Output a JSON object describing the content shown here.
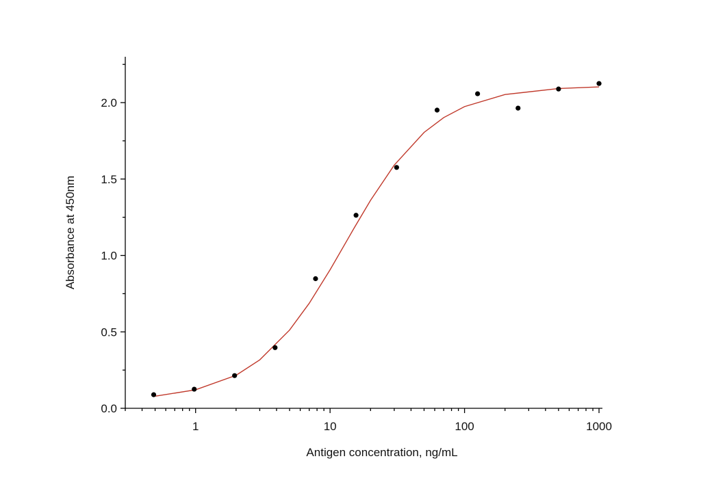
{
  "chart_data": {
    "type": "scatter",
    "x_label": "Antigen concentration, ng/mL",
    "y_label": "Absorbance at 450nm",
    "x_scale": "log",
    "xlim": [
      0.3,
      1060
    ],
    "xticks": [
      1,
      10,
      100,
      1000
    ],
    "x_minor_ticks": [
      0.3,
      0.4,
      0.5,
      0.6,
      0.7,
      0.8,
      0.9,
      2,
      3,
      4,
      5,
      6,
      7,
      8,
      9,
      20,
      30,
      40,
      50,
      60,
      70,
      80,
      90,
      200,
      300,
      400,
      500,
      600,
      700,
      800,
      900
    ],
    "ylim": [
      0,
      2.3
    ],
    "yticks": [
      {
        "value": 0,
        "label": "0.0"
      },
      {
        "value": 0.5,
        "label": "0.5"
      },
      {
        "value": 1,
        "label": "1.0"
      },
      {
        "value": 1.5,
        "label": "1.5"
      },
      {
        "value": 2,
        "label": "2.0"
      }
    ],
    "y_minor_ticks": [
      0.25,
      0.75,
      1.25,
      1.75,
      2.25
    ],
    "series": [
      {
        "type": "scatter",
        "color": "#000000",
        "x": [
          0.488,
          0.977,
          1.95,
          3.9,
          7.8,
          15.6,
          31.25,
          62.5,
          125,
          250,
          500,
          1000
        ],
        "values": [
          0.089,
          0.125,
          0.214,
          0.397,
          0.848,
          1.263,
          1.576,
          1.951,
          2.058,
          1.964,
          2.089,
          2.125
        ]
      },
      {
        "type": "line",
        "color": "#c0392b",
        "x": [
          0.5,
          1,
          2,
          3,
          5,
          7,
          10,
          15,
          20,
          30,
          50,
          70,
          100,
          200,
          500,
          1000
        ],
        "values": [
          0.079,
          0.121,
          0.216,
          0.317,
          0.512,
          0.687,
          0.906,
          1.175,
          1.361,
          1.591,
          1.805,
          1.902,
          1.974,
          2.053,
          2.092,
          2.103
        ]
      }
    ]
  }
}
